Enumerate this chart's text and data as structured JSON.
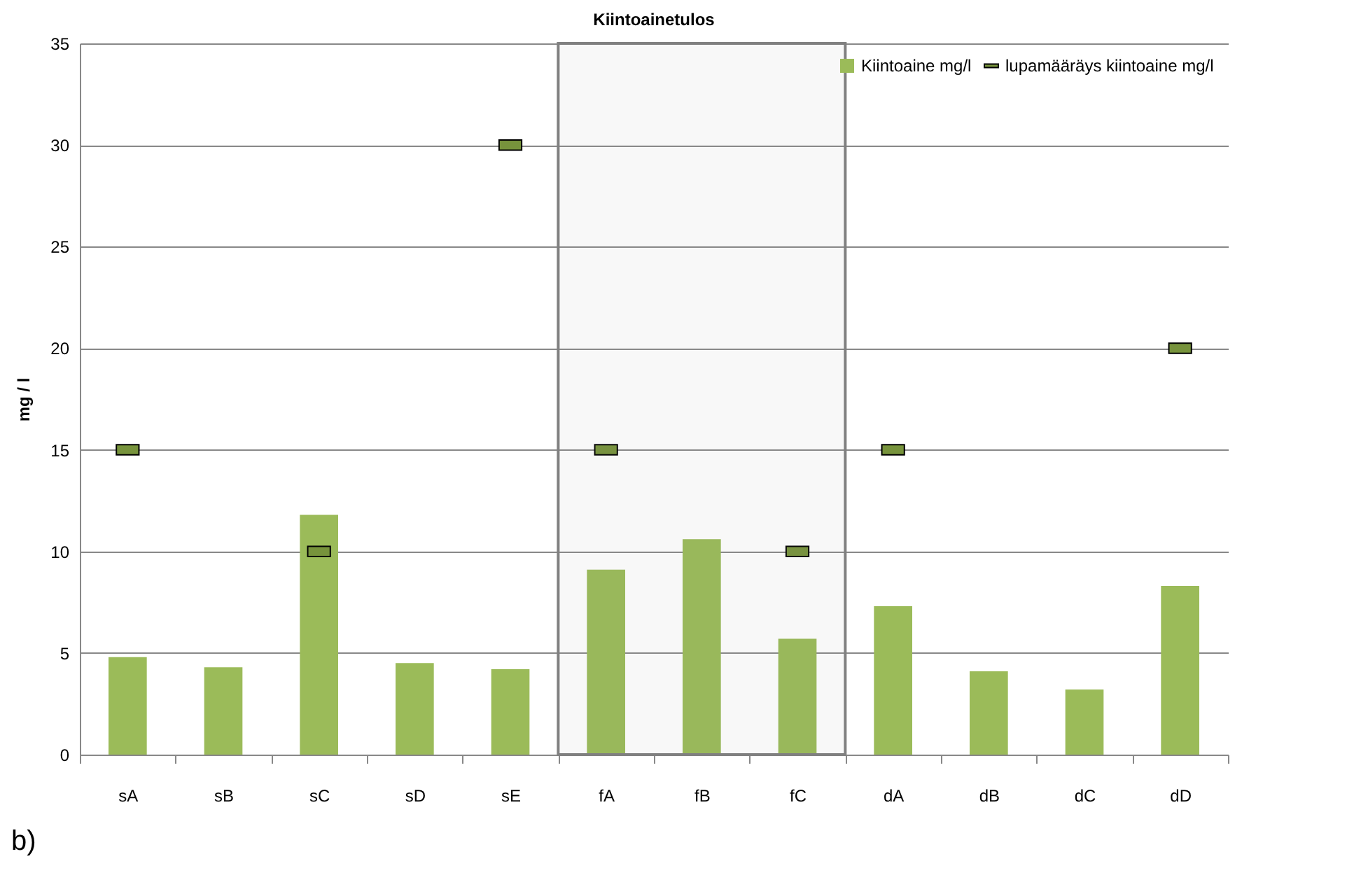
{
  "chart_data": {
    "type": "bar",
    "title": "Kiintoainetulos",
    "ylabel": "mg / l",
    "categories": [
      "sA",
      "sB",
      "sC",
      "sD",
      "sE",
      "fA",
      "fB",
      "fC",
      "dA",
      "dB",
      "dC",
      "dD"
    ],
    "series": [
      {
        "name": "Kiintoaine mg/l",
        "color": "#9bbb59",
        "values": [
          4.8,
          4.3,
          11.8,
          4.5,
          4.2,
          9.1,
          10.6,
          5.7,
          7.3,
          4.1,
          3.2,
          8.3
        ]
      },
      {
        "name": "lupamääräys kiintoaine mg/l",
        "type": "scatter",
        "color": "#77933c",
        "values": [
          15,
          null,
          10,
          null,
          30,
          15,
          null,
          10,
          15,
          null,
          null,
          20
        ]
      }
    ],
    "ylim": [
      0,
      35
    ],
    "yticks": [
      0,
      5,
      10,
      15,
      20,
      25,
      30,
      35
    ],
    "grid": "y",
    "legend": "top right",
    "bands": [
      {
        "axis": "x",
        "from": "fA",
        "to": "fC",
        "color": "#808080"
      }
    ],
    "annotations": [
      "b)"
    ]
  }
}
